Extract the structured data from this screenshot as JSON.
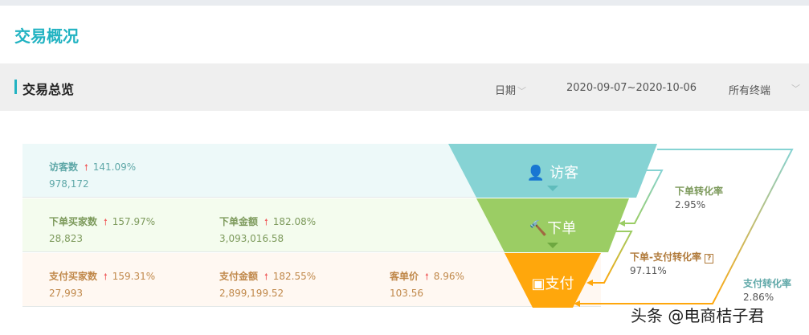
{
  "header": {
    "title": "交易概况"
  },
  "section": {
    "title": "交易总览",
    "date_label": "日期",
    "date_range": "2020-09-07~2020-10-06",
    "terminal": "所有终端"
  },
  "rows": [
    {
      "bg": "#edf9f9",
      "color": "#5fa8a8",
      "metrics": [
        {
          "label": "访客数",
          "change": "141.09%",
          "value": "978,172"
        }
      ]
    },
    {
      "bg": "#f4fcee",
      "color": "#7d9a5c",
      "metrics": [
        {
          "label": "下单买家数",
          "change": "157.97%",
          "value": "28,823"
        },
        {
          "label": "下单金额",
          "change": "182.08%",
          "value": "3,093,016.58"
        }
      ]
    },
    {
      "bg": "#fff8f2",
      "color": "#c0884a",
      "metrics": [
        {
          "label": "支付买家数",
          "change": "159.31%",
          "value": "27,993"
        },
        {
          "label": "支付金额",
          "change": "182.55%",
          "value": "2,899,199.52"
        },
        {
          "label": "客单价",
          "change": "8.96%",
          "value": "103.56"
        }
      ]
    }
  ],
  "funnel": {
    "stages": [
      {
        "label": "访客",
        "icon": "user-icon",
        "color": "#86d3d4"
      },
      {
        "label": "下单",
        "icon": "gavel-icon",
        "color": "#9bcd64"
      },
      {
        "label": "支付",
        "icon": "wallet-icon",
        "color": "#ffa70c"
      }
    ]
  },
  "rates": {
    "order": {
      "label": "下单转化率",
      "value": "2.95%",
      "color": "#7d9a5c"
    },
    "order_pay": {
      "label": "下单-支付转化率",
      "value": "97.11%",
      "color": "#b07a3a",
      "help": "?"
    },
    "pay": {
      "label": "支付转化率",
      "value": "2.86%",
      "color": "#5fa8a8"
    }
  },
  "watermark": "头条 @电商桔子君"
}
